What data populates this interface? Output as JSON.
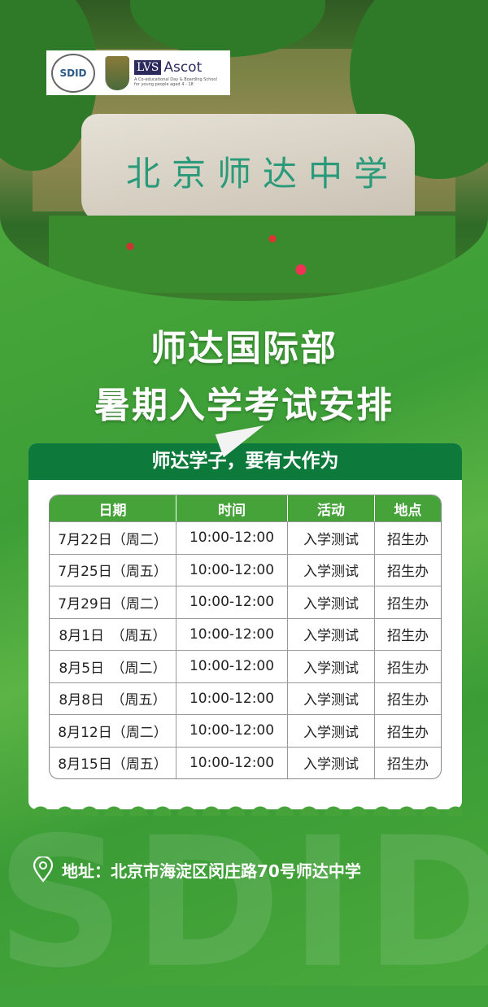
{
  "header": {
    "photo_sign_text": "北京师达中学",
    "logos": {
      "sdid": "SDID",
      "lvs": "LVS",
      "ascot": "Ascot",
      "lvs_tagline": "A Co-educational Day & Boarding School for young people aged 4 - 18"
    }
  },
  "title": {
    "line1": "师达国际部",
    "line2": "暑期入学考试安排"
  },
  "card": {
    "slogan": "师达学子，要有大作为",
    "columns": [
      "日期",
      "时间",
      "活动",
      "地点"
    ],
    "rows": [
      [
        "7月22日（周二）",
        "10:00-12:00",
        "入学测试",
        "招生办"
      ],
      [
        "7月25日（周五）",
        "10:00-12:00",
        "入学测试",
        "招生办"
      ],
      [
        "7月29日（周二）",
        "10:00-12:00",
        "入学测试",
        "招生办"
      ],
      [
        "8月1日　（周五）",
        "10:00-12:00",
        "入学测试",
        "招生办"
      ],
      [
        "8月5日　（周二）",
        "10:00-12:00",
        "入学测试",
        "招生办"
      ],
      [
        "8月8日　（周五）",
        "10:00-12:00",
        "入学测试",
        "招生办"
      ],
      [
        "8月12日（周二）",
        "10:00-12:00",
        "入学测试",
        "招生办"
      ],
      [
        "8月15日（周五）",
        "10:00-12:00",
        "入学测试",
        "招生办"
      ]
    ]
  },
  "watermark": "SDID",
  "address": {
    "icon": "location-pin-icon",
    "text": "地址：北京市海淀区闵庄路70号师达中学"
  },
  "colors": {
    "primary_green": "#45a33a",
    "dark_green": "#0d7a3b"
  }
}
